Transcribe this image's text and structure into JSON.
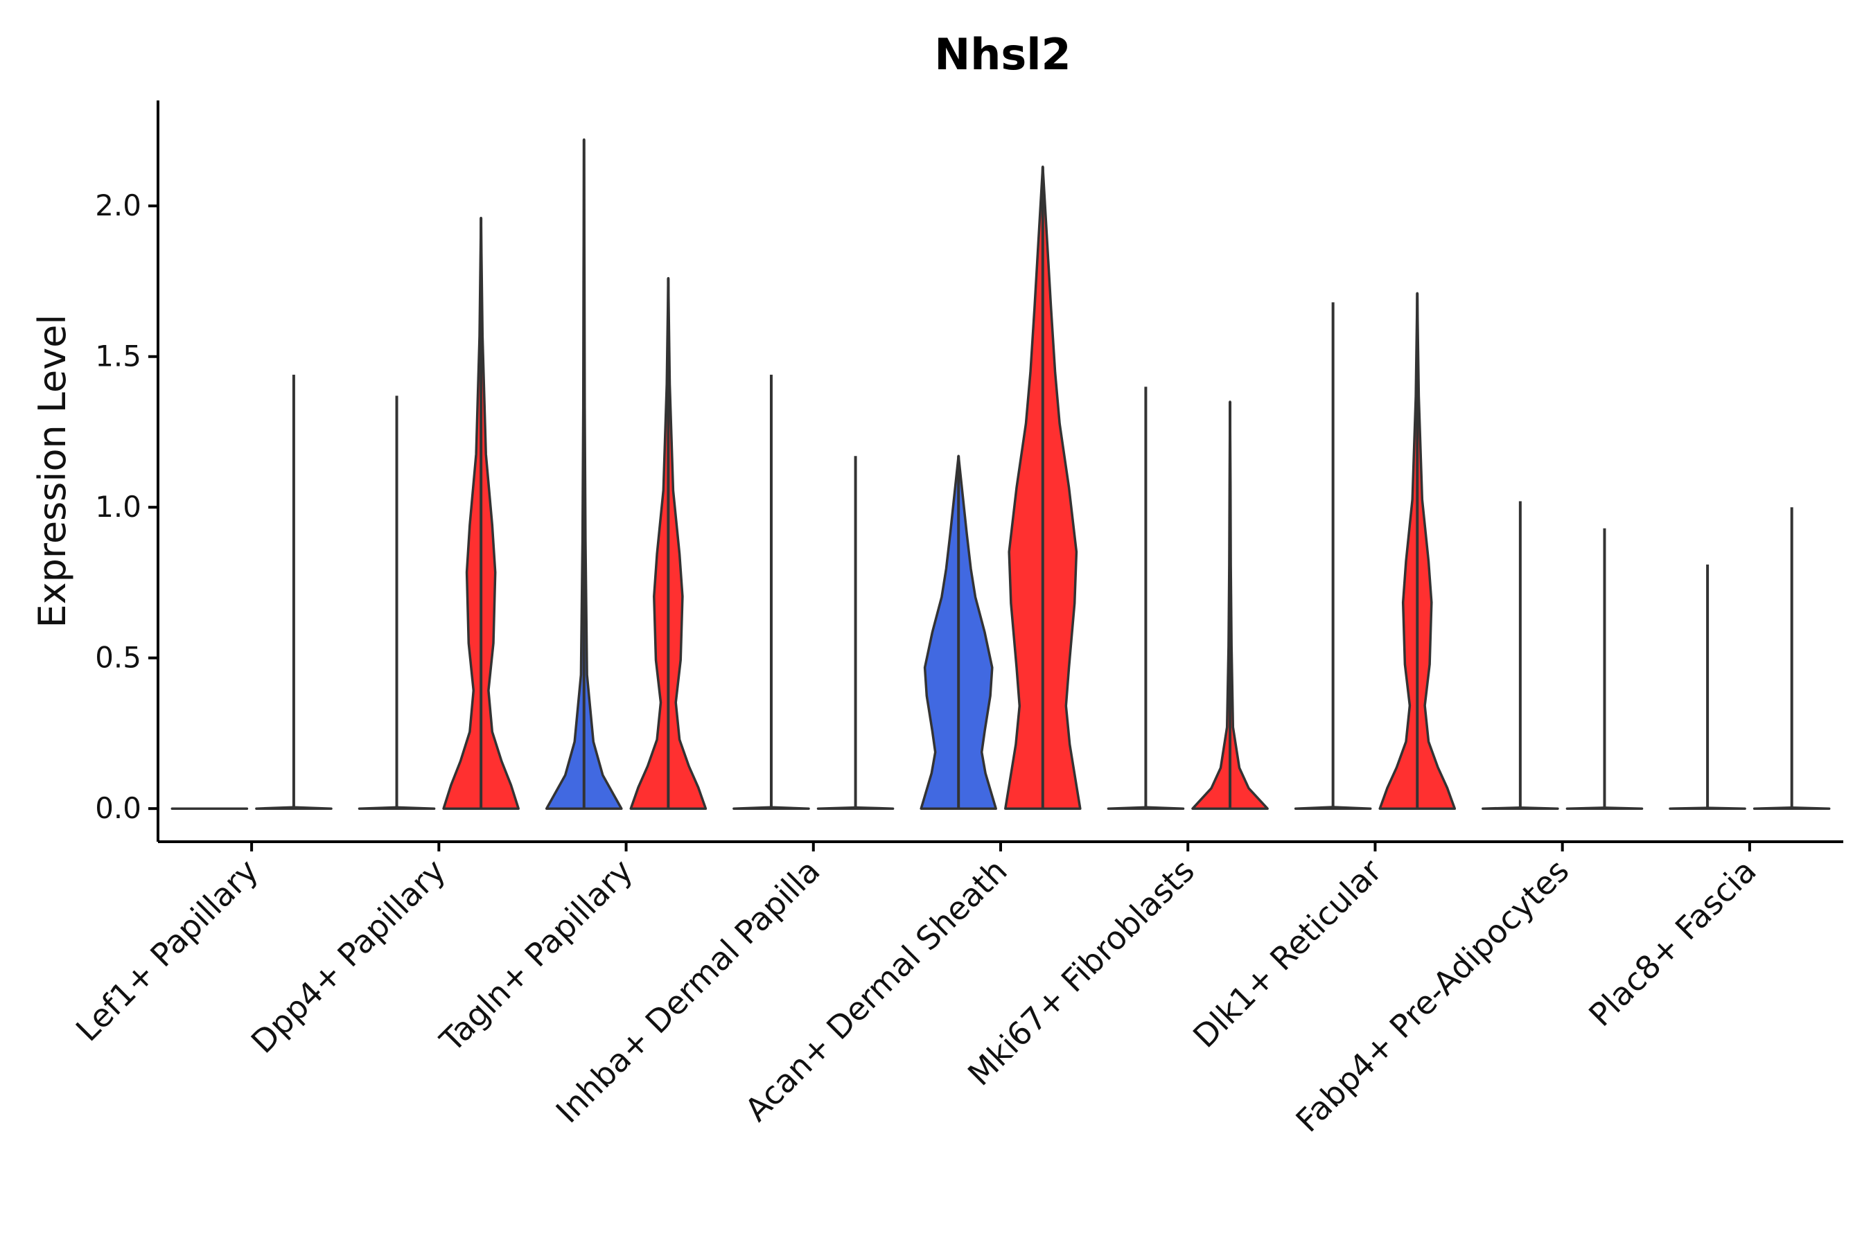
{
  "chart_data": {
    "type": "violin",
    "title": "Nhsl2",
    "xlabel": "",
    "ylabel": "Expression Level",
    "ylim": [
      -0.11,
      2.35
    ],
    "yticks": [
      0.0,
      0.5,
      1.0,
      1.5,
      2.0
    ],
    "ytick_labels": [
      "0.0",
      "0.5",
      "1.0",
      "1.5",
      "2.0"
    ],
    "grid": false,
    "legend": "none",
    "colors": {
      "condition_a": "#4169E1",
      "condition_b": "#FF3030",
      "outline": "#333333",
      "axis": "#000000"
    },
    "categories": [
      "Lef1+ Papillary",
      "Dpp4+ Papillary",
      "Tagln+ Papillary",
      "Inhba+ Dermal Papilla",
      "Acan+ Dermal Sheath",
      "Mki67+ Fibroblasts",
      "Dlk1+ Reticular",
      "Fabp4+ Pre-Adipocytes",
      "Plac8+ Fascia"
    ],
    "violins": [
      {
        "category": "Lef1+ Papillary",
        "group": "condition_a",
        "ymax": 0.0,
        "shape": "flat"
      },
      {
        "category": "Lef1+ Papillary",
        "group": "condition_b",
        "ymax": 1.44,
        "shape": "flat"
      },
      {
        "category": "Dpp4+ Papillary",
        "group": "condition_a",
        "ymax": 1.37,
        "shape": "flat"
      },
      {
        "category": "Dpp4+ Papillary",
        "group": "condition_b",
        "ymax": 1.96,
        "shape": "bimodal"
      },
      {
        "category": "Tagln+ Papillary",
        "group": "condition_a",
        "ymax": 2.22,
        "shape": "low"
      },
      {
        "category": "Tagln+ Papillary",
        "group": "condition_b",
        "ymax": 1.76,
        "shape": "bimodal"
      },
      {
        "category": "Inhba+ Dermal Papilla",
        "group": "condition_a",
        "ymax": 1.44,
        "shape": "flat"
      },
      {
        "category": "Inhba+ Dermal Papilla",
        "group": "condition_b",
        "ymax": 1.17,
        "shape": "flat"
      },
      {
        "category": "Acan+ Dermal Sheath",
        "group": "condition_a",
        "ymax": 1.17,
        "shape": "wide"
      },
      {
        "category": "Acan+ Dermal Sheath",
        "group": "condition_b",
        "ymax": 2.13,
        "shape": "wide"
      },
      {
        "category": "Mki67+ Fibroblasts",
        "group": "condition_a",
        "ymax": 1.4,
        "shape": "flat"
      },
      {
        "category": "Mki67+ Fibroblasts",
        "group": "condition_b",
        "ymax": 1.35,
        "shape": "low"
      },
      {
        "category": "Dlk1+ Reticular",
        "group": "condition_a",
        "ymax": 1.68,
        "shape": "flat"
      },
      {
        "category": "Dlk1+ Reticular",
        "group": "condition_b",
        "ymax": 1.71,
        "shape": "bimodal"
      },
      {
        "category": "Fabp4+ Pre-Adipocytes",
        "group": "condition_a",
        "ymax": 1.02,
        "shape": "flat"
      },
      {
        "category": "Fabp4+ Pre-Adipocytes",
        "group": "condition_b",
        "ymax": 0.93,
        "shape": "flat"
      },
      {
        "category": "Plac8+ Fascia",
        "group": "condition_a",
        "ymax": 0.81,
        "shape": "flat"
      },
      {
        "category": "Plac8+ Fascia",
        "group": "condition_b",
        "ymax": 1.0,
        "shape": "flat"
      }
    ],
    "profiles": {
      "flat": [
        [
          0.0,
          1.0
        ],
        [
          0.003,
          0.0
        ]
      ],
      "low": [
        [
          0.0,
          1.0
        ],
        [
          0.05,
          0.5
        ],
        [
          0.1,
          0.25
        ],
        [
          0.2,
          0.08
        ],
        [
          0.4,
          0.04
        ],
        [
          0.6,
          0.02
        ],
        [
          0.8,
          0.012
        ],
        [
          1.0,
          0.0
        ]
      ],
      "bimodal": [
        [
          0.0,
          1.0
        ],
        [
          0.04,
          0.8
        ],
        [
          0.08,
          0.55
        ],
        [
          0.13,
          0.3
        ],
        [
          0.2,
          0.2
        ],
        [
          0.28,
          0.33
        ],
        [
          0.4,
          0.38
        ],
        [
          0.48,
          0.3
        ],
        [
          0.6,
          0.13
        ],
        [
          0.8,
          0.04
        ],
        [
          1.0,
          0.0
        ]
      ],
      "wide": [
        [
          0.0,
          1.0
        ],
        [
          0.1,
          0.72
        ],
        [
          0.16,
          0.62
        ],
        [
          0.22,
          0.7
        ],
        [
          0.32,
          0.85
        ],
        [
          0.4,
          0.9
        ],
        [
          0.5,
          0.7
        ],
        [
          0.6,
          0.45
        ],
        [
          0.68,
          0.33
        ],
        [
          0.78,
          0.22
        ],
        [
          0.88,
          0.12
        ],
        [
          1.0,
          0.0
        ]
      ]
    }
  }
}
